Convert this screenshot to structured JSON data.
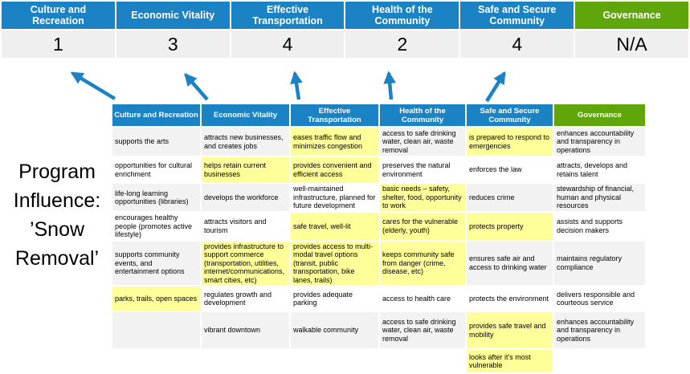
{
  "colors": {
    "header_blue": "#1b82c4",
    "header_green": "#5fa60a",
    "score_band_gray": "#efefef",
    "row_band_gray": "#f2f2f2",
    "highlight_yellow": "#ffff99",
    "arrow_blue": "#1b82c4"
  },
  "program_label": {
    "text": "Program Influence: ’Snow Removal’",
    "lines": [
      "Program",
      "Influence:",
      "’Snow",
      "Removal’"
    ]
  },
  "scoreboard": {
    "items": [
      {
        "label": "Culture and Recreation",
        "score": "1",
        "color": "blue"
      },
      {
        "label": "Economic Vitality",
        "score": "3",
        "color": "blue"
      },
      {
        "label": "Effective Transportation",
        "score": "4",
        "color": "blue"
      },
      {
        "label": "Health of the Community",
        "score": "2",
        "color": "blue"
      },
      {
        "label": "Safe and Secure Community",
        "score": "4",
        "color": "blue"
      },
      {
        "label": "Governance",
        "score": "N/A",
        "color": "green"
      }
    ]
  },
  "matrix": {
    "headers": [
      {
        "label": "Culture and Recreation",
        "color": "blue"
      },
      {
        "label": "Economic Vitality",
        "color": "blue"
      },
      {
        "label": "Effective Transportation",
        "color": "blue"
      },
      {
        "label": "Health of the Community",
        "color": "blue"
      },
      {
        "label": "Safe and Secure Community",
        "color": "blue"
      },
      {
        "label": "Governance",
        "color": "green"
      }
    ],
    "rows": [
      [
        {
          "text": "supports the arts",
          "bg": "gray"
        },
        {
          "text": "attracts new businesses, and creates jobs",
          "bg": "gray"
        },
        {
          "text": "eases traffic flow and minimizes congestion",
          "bg": "yellow"
        },
        {
          "text": "access to safe drinking water, clean air, waste removal",
          "bg": "gray"
        },
        {
          "text": "is prepared to respond to emergencies",
          "bg": "yellow"
        },
        {
          "text": "enhances accountability and transparency in operations",
          "bg": "gray"
        }
      ],
      [
        {
          "text": "opportunities for cultural enrichment",
          "bg": "white"
        },
        {
          "text": "helps retain current businesses",
          "bg": "yellow"
        },
        {
          "text": "provides convenient and efficient access",
          "bg": "yellow"
        },
        {
          "text": "preserves the natural environment",
          "bg": "white"
        },
        {
          "text": "enforces the law",
          "bg": "white"
        },
        {
          "text": "attracts, develops and retains talent",
          "bg": "white"
        }
      ],
      [
        {
          "text": "life-long learning opportunities (libraries)",
          "bg": "gray"
        },
        {
          "text": "develops the workforce",
          "bg": "gray"
        },
        {
          "text": "well-maintained infrastructure, planned for future development",
          "bg": "white"
        },
        {
          "text": "basic needs – safety, shelter, food, opportunity to work",
          "bg": "yellow"
        },
        {
          "text": "reduces crime",
          "bg": "gray"
        },
        {
          "text": "stewardship of financial, human and physical resources",
          "bg": "gray"
        }
      ],
      [
        {
          "text": "encourages healthy people (promotes active lifestyle)",
          "bg": "white"
        },
        {
          "text": "attracts visitors and tourism",
          "bg": "white"
        },
        {
          "text": "safe travel, well-lit",
          "bg": "yellow"
        },
        {
          "text": "cares for the vulnerable (elderly, youth)",
          "bg": "yellow"
        },
        {
          "text": "protects property",
          "bg": "yellow"
        },
        {
          "text": "assists and supports decision makers",
          "bg": "white"
        }
      ],
      [
        {
          "text": "supports community events, and entertainment options",
          "bg": "gray"
        },
        {
          "text": "provides infrastructure to support commerce (transportation, utilities, internet/communications, smart cities, etc)",
          "bg": "yellow"
        },
        {
          "text": "provides access to multi-modal travel options (transit, public transportation, bike lanes, trails)",
          "bg": "yellow"
        },
        {
          "text": "keeps community safe from danger (crime, disease, etc)",
          "bg": "yellow"
        },
        {
          "text": "ensures safe air and access to drinking water",
          "bg": "gray"
        },
        {
          "text": "maintains regulatory compliance",
          "bg": "gray"
        }
      ],
      [
        {
          "text": "parks, trails, open spaces",
          "bg": "yellow"
        },
        {
          "text": "regulates growth and development",
          "bg": "white"
        },
        {
          "text": "provides adequate parking",
          "bg": "white"
        },
        {
          "text": "access to health care",
          "bg": "white"
        },
        {
          "text": "protects the environment",
          "bg": "white"
        },
        {
          "text": "delivers responsible and courteous service",
          "bg": "white"
        }
      ],
      [
        {
          "text": "",
          "bg": "gray"
        },
        {
          "text": "vibrant downtown",
          "bg": "gray"
        },
        {
          "text": "walkable community",
          "bg": "gray"
        },
        {
          "text": "access to safe drinking water, clean air, waste removal",
          "bg": "gray"
        },
        {
          "text": "provides safe travel and mobility",
          "bg": "yellow"
        },
        {
          "text": "enhances accountability and transparency in operations",
          "bg": "gray"
        }
      ],
      [
        {
          "text": "",
          "bg": "white"
        },
        {
          "text": "",
          "bg": "white"
        },
        {
          "text": "",
          "bg": "white"
        },
        {
          "text": "",
          "bg": "white"
        },
        {
          "text": "looks after it's most vulnerable",
          "bg": "yellow"
        },
        {
          "text": "",
          "bg": "white"
        }
      ]
    ]
  }
}
